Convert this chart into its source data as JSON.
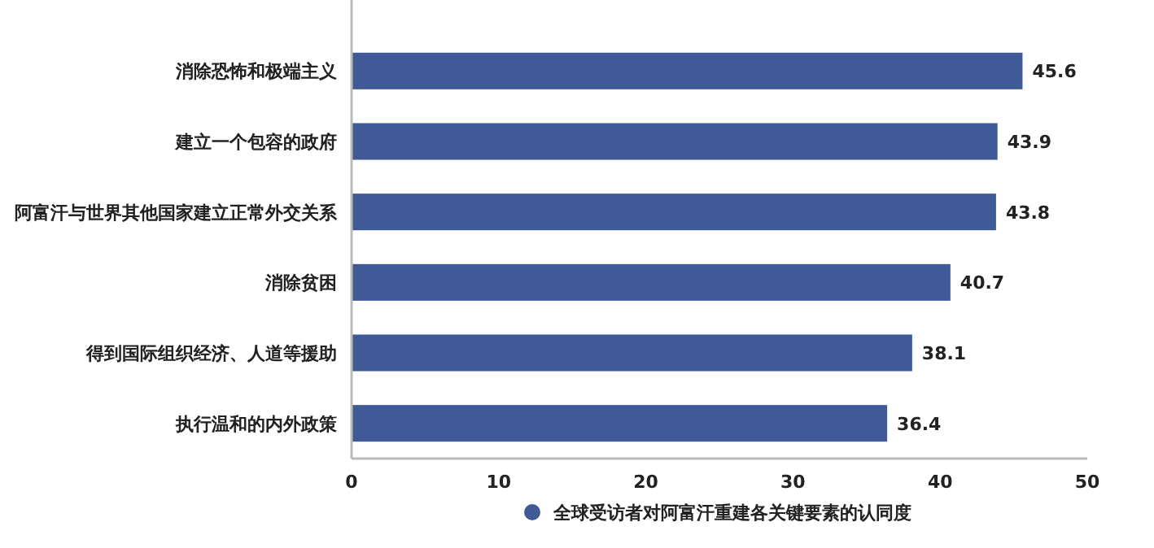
{
  "chart_data": {
    "type": "bar",
    "orientation": "horizontal",
    "categories": [
      "消除恐怖和极端主义",
      "建立一个包容的政府",
      "阿富汗与世界其他国家建立正常外交关系",
      "消除贫困",
      "得到国际组织经济、人道等援助",
      "执行温和的内外政策"
    ],
    "series": [
      {
        "name": "全球受访者对阿富汗重建各关键要素的认同度",
        "color": "#3f5a97",
        "values": [
          45.6,
          43.9,
          43.8,
          40.7,
          38.1,
          36.4
        ]
      }
    ],
    "xlim": [
      0,
      50
    ],
    "xticks": [
      0,
      10,
      20,
      30,
      40,
      50
    ],
    "data_labels": true,
    "legend": "bottom",
    "grid": false
  }
}
